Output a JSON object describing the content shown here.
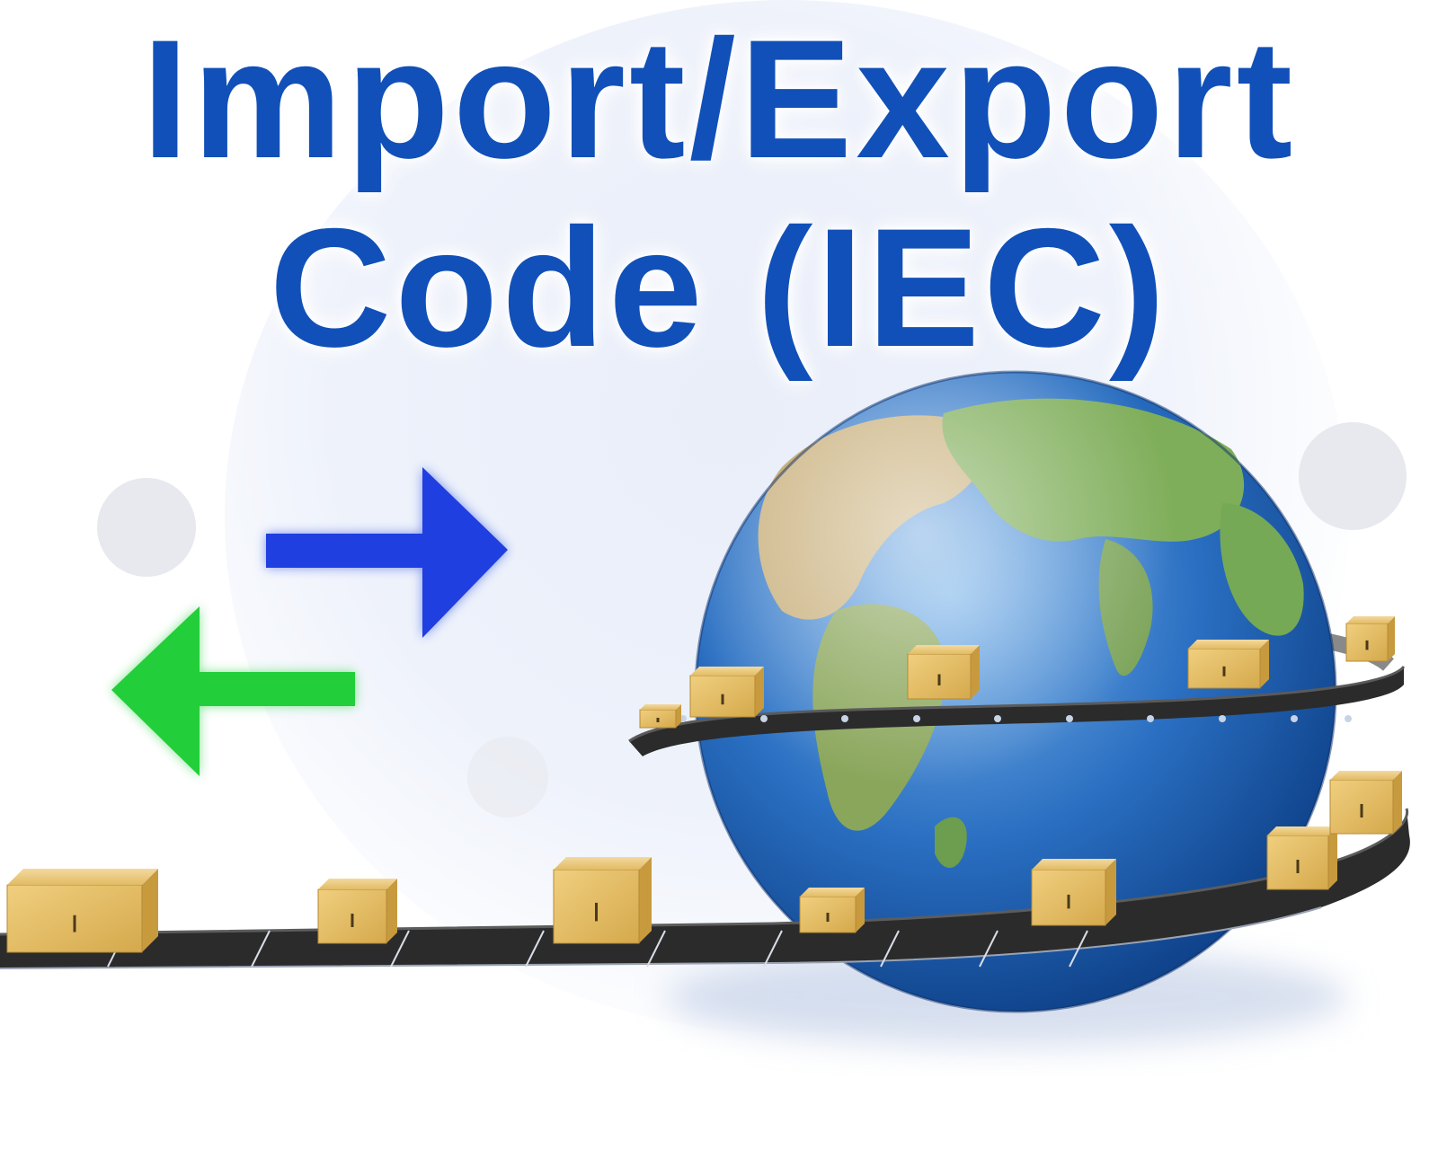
{
  "title": {
    "line1": "Import/Export",
    "line2": "Code (IEC)"
  },
  "colors": {
    "title": "#1150b8",
    "export_arrow": "#1f3fe0",
    "import_arrow": "#22cf3a",
    "ocean": "#2a6fc2",
    "land": "#6fa650",
    "belt": "#2b2b2b",
    "box": "#e5be67"
  },
  "icons": [
    "export-arrow-icon",
    "import-arrow-icon",
    "globe-icon",
    "conveyor-belt",
    "cardboard-box-icon"
  ]
}
